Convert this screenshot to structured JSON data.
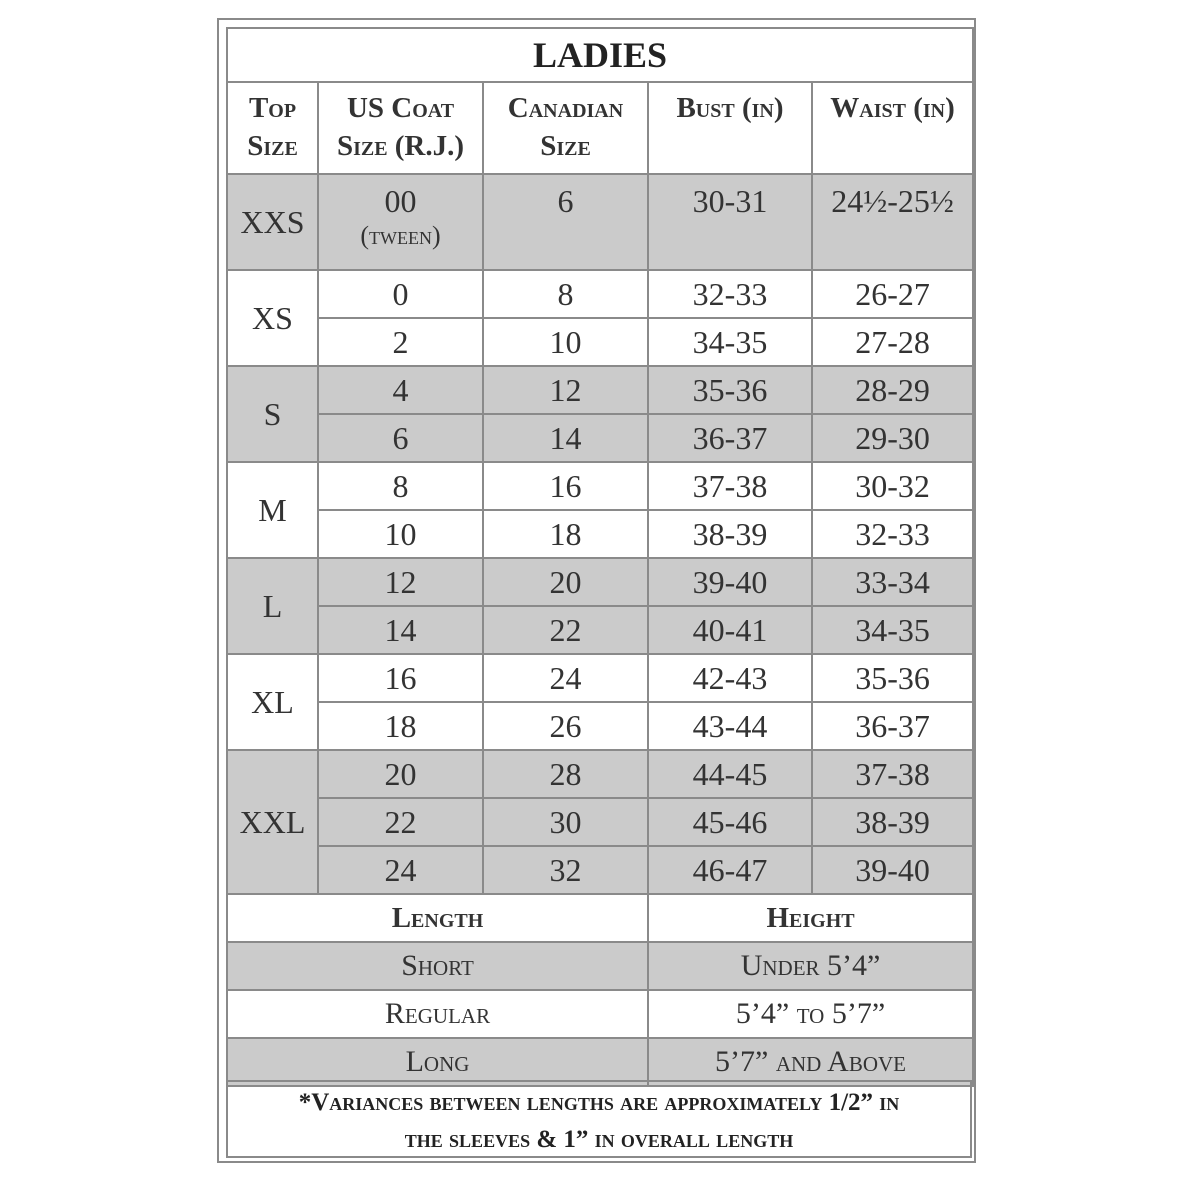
{
  "title": "LADIES",
  "headers": {
    "top_size": [
      "Top",
      "Size"
    ],
    "us_coat": [
      "US Coat",
      "Size (R.J.)"
    ],
    "canadian": [
      "Canadian",
      "Size"
    ],
    "bust": "Bust (in)",
    "waist": "Waist (in)"
  },
  "groups": [
    {
      "top": "XXS",
      "shaded": true,
      "rows": [
        {
          "us": "00",
          "note": "(tween)",
          "ca": "6",
          "bust": "30-31",
          "waist": "24½-25½"
        }
      ]
    },
    {
      "top": "XS",
      "shaded": false,
      "rows": [
        {
          "us": "0",
          "ca": "8",
          "bust": "32-33",
          "waist": "26-27"
        },
        {
          "us": "2",
          "ca": "10",
          "bust": "34-35",
          "waist": "27-28"
        }
      ]
    },
    {
      "top": "S",
      "shaded": true,
      "rows": [
        {
          "us": "4",
          "ca": "12",
          "bust": "35-36",
          "waist": "28-29"
        },
        {
          "us": "6",
          "ca": "14",
          "bust": "36-37",
          "waist": "29-30"
        }
      ]
    },
    {
      "top": "M",
      "shaded": false,
      "rows": [
        {
          "us": "8",
          "ca": "16",
          "bust": "37-38",
          "waist": "30-32"
        },
        {
          "us": "10",
          "ca": "18",
          "bust": "38-39",
          "waist": "32-33"
        }
      ]
    },
    {
      "top": "L",
      "shaded": true,
      "rows": [
        {
          "us": "12",
          "ca": "20",
          "bust": "39-40",
          "waist": "33-34"
        },
        {
          "us": "14",
          "ca": "22",
          "bust": "40-41",
          "waist": "34-35"
        }
      ]
    },
    {
      "top": "XL",
      "shaded": false,
      "rows": [
        {
          "us": "16",
          "ca": "24",
          "bust": "42-43",
          "waist": "35-36"
        },
        {
          "us": "18",
          "ca": "26",
          "bust": "43-44",
          "waist": "36-37"
        }
      ]
    },
    {
      "top": "XXL",
      "shaded": true,
      "rows": [
        {
          "us": "20",
          "ca": "28",
          "bust": "44-45",
          "waist": "37-38"
        },
        {
          "us": "22",
          "ca": "30",
          "bust": "45-46",
          "waist": "38-39"
        },
        {
          "us": "24",
          "ca": "32",
          "bust": "46-47",
          "waist": "39-40"
        }
      ]
    }
  ],
  "length_table": {
    "headers": [
      "Length",
      "Height"
    ],
    "rows": [
      {
        "length": "Short",
        "height": "Under 5’4”",
        "shaded": true
      },
      {
        "length": "Regular",
        "height": "5’4” to 5’7”",
        "shaded": false
      },
      {
        "length": "Long",
        "height": "5’7” and Above",
        "shaded": true
      }
    ]
  },
  "footnote": [
    "*Variances between lengths are approximately 1/2” in",
    "the sleeves & 1” in overall length"
  ],
  "colors": {
    "shade": "#cbcbcb",
    "border": "#8a8a8a"
  }
}
